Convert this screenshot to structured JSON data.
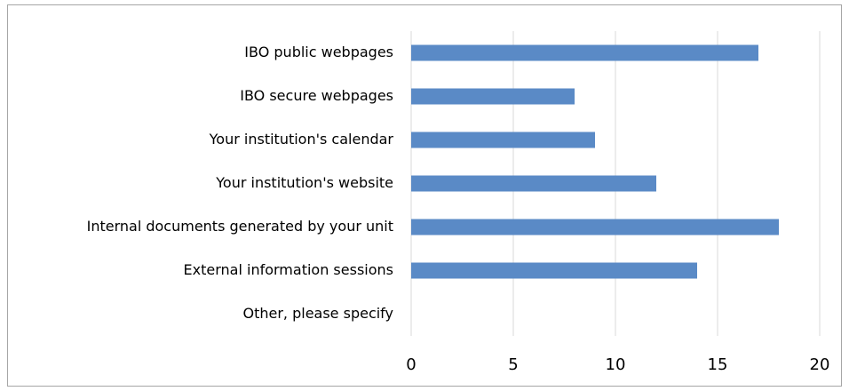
{
  "chart_data": {
    "type": "bar",
    "orientation": "horizontal",
    "categories": [
      "IBO public webpages",
      "IBO secure webpages",
      "Your institution's calendar",
      "Your institution's website",
      "Internal documents generated by your unit",
      "External information sessions",
      "Other, please specify"
    ],
    "values": [
      17,
      8,
      9,
      12,
      18,
      14,
      0
    ],
    "color": "#5a8ac6",
    "xlim": [
      0,
      20
    ],
    "xticks": [
      0,
      5,
      10,
      15,
      20
    ],
    "grid": true
  }
}
